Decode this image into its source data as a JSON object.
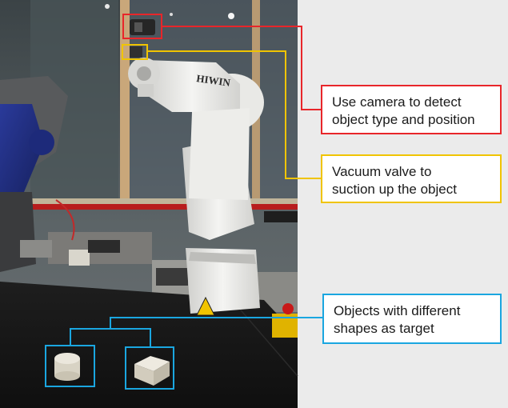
{
  "colors": {
    "camera": "#e8262a",
    "valve": "#f0c400",
    "objects": "#1aa6e0",
    "background": "#ebebeb"
  },
  "photo": {
    "robot_brand": "HIWIN"
  },
  "callouts": {
    "camera": {
      "line1": "Use camera to detect",
      "line2": "object type and position"
    },
    "valve": {
      "line1": "Vacuum valve to",
      "line2": "suction up the object"
    },
    "objects": {
      "line1": "Objects with different",
      "line2": "shapes as target"
    }
  }
}
